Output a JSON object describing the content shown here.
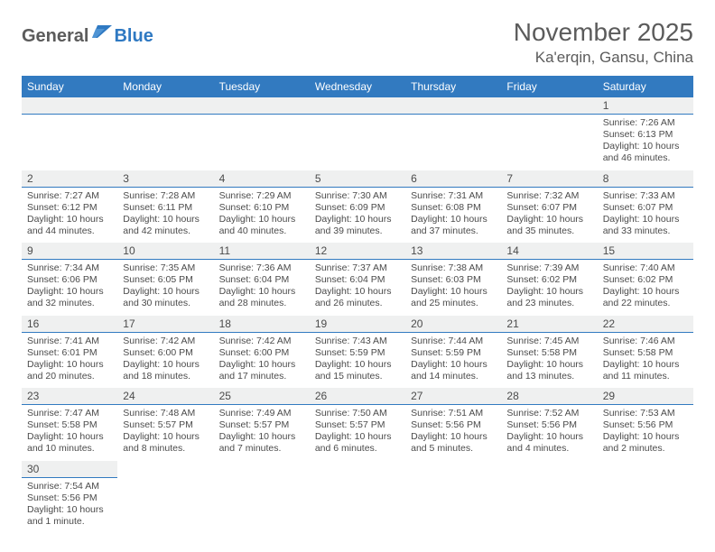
{
  "logo": {
    "text_a": "General",
    "text_b": "Blue"
  },
  "title": "November 2025",
  "location": "Ka'erqin, Gansu, China",
  "colors": {
    "header_bg": "#327ac0",
    "header_text": "#ffffff",
    "daynum_bg": "#eff0f0",
    "rule": "#327ac0",
    "body_text": "#4b4b4b",
    "page_bg": "#ffffff"
  },
  "columns": [
    "Sunday",
    "Monday",
    "Tuesday",
    "Wednesday",
    "Thursday",
    "Friday",
    "Saturday"
  ],
  "weeks": [
    [
      null,
      null,
      null,
      null,
      null,
      null,
      {
        "n": "1",
        "sunrise": "Sunrise: 7:26 AM",
        "sunset": "Sunset: 6:13 PM",
        "daylight": "Daylight: 10 hours and 46 minutes."
      }
    ],
    [
      {
        "n": "2",
        "sunrise": "Sunrise: 7:27 AM",
        "sunset": "Sunset: 6:12 PM",
        "daylight": "Daylight: 10 hours and 44 minutes."
      },
      {
        "n": "3",
        "sunrise": "Sunrise: 7:28 AM",
        "sunset": "Sunset: 6:11 PM",
        "daylight": "Daylight: 10 hours and 42 minutes."
      },
      {
        "n": "4",
        "sunrise": "Sunrise: 7:29 AM",
        "sunset": "Sunset: 6:10 PM",
        "daylight": "Daylight: 10 hours and 40 minutes."
      },
      {
        "n": "5",
        "sunrise": "Sunrise: 7:30 AM",
        "sunset": "Sunset: 6:09 PM",
        "daylight": "Daylight: 10 hours and 39 minutes."
      },
      {
        "n": "6",
        "sunrise": "Sunrise: 7:31 AM",
        "sunset": "Sunset: 6:08 PM",
        "daylight": "Daylight: 10 hours and 37 minutes."
      },
      {
        "n": "7",
        "sunrise": "Sunrise: 7:32 AM",
        "sunset": "Sunset: 6:07 PM",
        "daylight": "Daylight: 10 hours and 35 minutes."
      },
      {
        "n": "8",
        "sunrise": "Sunrise: 7:33 AM",
        "sunset": "Sunset: 6:07 PM",
        "daylight": "Daylight: 10 hours and 33 minutes."
      }
    ],
    [
      {
        "n": "9",
        "sunrise": "Sunrise: 7:34 AM",
        "sunset": "Sunset: 6:06 PM",
        "daylight": "Daylight: 10 hours and 32 minutes."
      },
      {
        "n": "10",
        "sunrise": "Sunrise: 7:35 AM",
        "sunset": "Sunset: 6:05 PM",
        "daylight": "Daylight: 10 hours and 30 minutes."
      },
      {
        "n": "11",
        "sunrise": "Sunrise: 7:36 AM",
        "sunset": "Sunset: 6:04 PM",
        "daylight": "Daylight: 10 hours and 28 minutes."
      },
      {
        "n": "12",
        "sunrise": "Sunrise: 7:37 AM",
        "sunset": "Sunset: 6:04 PM",
        "daylight": "Daylight: 10 hours and 26 minutes."
      },
      {
        "n": "13",
        "sunrise": "Sunrise: 7:38 AM",
        "sunset": "Sunset: 6:03 PM",
        "daylight": "Daylight: 10 hours and 25 minutes."
      },
      {
        "n": "14",
        "sunrise": "Sunrise: 7:39 AM",
        "sunset": "Sunset: 6:02 PM",
        "daylight": "Daylight: 10 hours and 23 minutes."
      },
      {
        "n": "15",
        "sunrise": "Sunrise: 7:40 AM",
        "sunset": "Sunset: 6:02 PM",
        "daylight": "Daylight: 10 hours and 22 minutes."
      }
    ],
    [
      {
        "n": "16",
        "sunrise": "Sunrise: 7:41 AM",
        "sunset": "Sunset: 6:01 PM",
        "daylight": "Daylight: 10 hours and 20 minutes."
      },
      {
        "n": "17",
        "sunrise": "Sunrise: 7:42 AM",
        "sunset": "Sunset: 6:00 PM",
        "daylight": "Daylight: 10 hours and 18 minutes."
      },
      {
        "n": "18",
        "sunrise": "Sunrise: 7:42 AM",
        "sunset": "Sunset: 6:00 PM",
        "daylight": "Daylight: 10 hours and 17 minutes."
      },
      {
        "n": "19",
        "sunrise": "Sunrise: 7:43 AM",
        "sunset": "Sunset: 5:59 PM",
        "daylight": "Daylight: 10 hours and 15 minutes."
      },
      {
        "n": "20",
        "sunrise": "Sunrise: 7:44 AM",
        "sunset": "Sunset: 5:59 PM",
        "daylight": "Daylight: 10 hours and 14 minutes."
      },
      {
        "n": "21",
        "sunrise": "Sunrise: 7:45 AM",
        "sunset": "Sunset: 5:58 PM",
        "daylight": "Daylight: 10 hours and 13 minutes."
      },
      {
        "n": "22",
        "sunrise": "Sunrise: 7:46 AM",
        "sunset": "Sunset: 5:58 PM",
        "daylight": "Daylight: 10 hours and 11 minutes."
      }
    ],
    [
      {
        "n": "23",
        "sunrise": "Sunrise: 7:47 AM",
        "sunset": "Sunset: 5:58 PM",
        "daylight": "Daylight: 10 hours and 10 minutes."
      },
      {
        "n": "24",
        "sunrise": "Sunrise: 7:48 AM",
        "sunset": "Sunset: 5:57 PM",
        "daylight": "Daylight: 10 hours and 8 minutes."
      },
      {
        "n": "25",
        "sunrise": "Sunrise: 7:49 AM",
        "sunset": "Sunset: 5:57 PM",
        "daylight": "Daylight: 10 hours and 7 minutes."
      },
      {
        "n": "26",
        "sunrise": "Sunrise: 7:50 AM",
        "sunset": "Sunset: 5:57 PM",
        "daylight": "Daylight: 10 hours and 6 minutes."
      },
      {
        "n": "27",
        "sunrise": "Sunrise: 7:51 AM",
        "sunset": "Sunset: 5:56 PM",
        "daylight": "Daylight: 10 hours and 5 minutes."
      },
      {
        "n": "28",
        "sunrise": "Sunrise: 7:52 AM",
        "sunset": "Sunset: 5:56 PM",
        "daylight": "Daylight: 10 hours and 4 minutes."
      },
      {
        "n": "29",
        "sunrise": "Sunrise: 7:53 AM",
        "sunset": "Sunset: 5:56 PM",
        "daylight": "Daylight: 10 hours and 2 minutes."
      }
    ],
    [
      {
        "n": "30",
        "sunrise": "Sunrise: 7:54 AM",
        "sunset": "Sunset: 5:56 PM",
        "daylight": "Daylight: 10 hours and 1 minute."
      },
      null,
      null,
      null,
      null,
      null,
      null
    ]
  ]
}
